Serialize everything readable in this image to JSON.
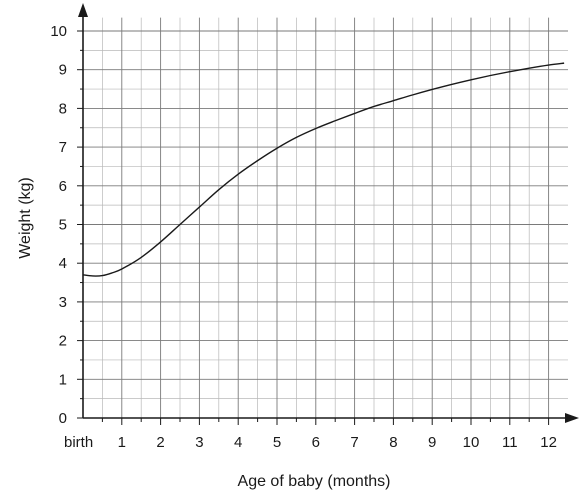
{
  "chart_data": {
    "type": "line",
    "title": "",
    "xlabel": "Age of baby (months)",
    "ylabel": "Weight (kg)",
    "xlim": [
      0,
      12.5
    ],
    "ylim": [
      0,
      10.5
    ],
    "x_ticks": [
      {
        "value": 0,
        "label": "birth"
      },
      {
        "value": 1,
        "label": "1"
      },
      {
        "value": 2,
        "label": "2"
      },
      {
        "value": 3,
        "label": "3"
      },
      {
        "value": 4,
        "label": "4"
      },
      {
        "value": 5,
        "label": "5"
      },
      {
        "value": 6,
        "label": "6"
      },
      {
        "value": 7,
        "label": "7"
      },
      {
        "value": 8,
        "label": "8"
      },
      {
        "value": 9,
        "label": "9"
      },
      {
        "value": 10,
        "label": "10"
      },
      {
        "value": 11,
        "label": "11"
      },
      {
        "value": 12,
        "label": "12"
      }
    ],
    "y_ticks": [
      0,
      1,
      2,
      3,
      4,
      5,
      6,
      7,
      8,
      9,
      10
    ],
    "minor_grid_x_step": 0.5,
    "minor_grid_y_step": 0.5,
    "grid": true,
    "legend": "none",
    "series": [
      {
        "color": "#1a1a1a",
        "points": [
          [
            0,
            3.7
          ],
          [
            0.25,
            3.67
          ],
          [
            0.5,
            3.68
          ],
          [
            0.75,
            3.75
          ],
          [
            1,
            3.85
          ],
          [
            1.5,
            4.15
          ],
          [
            2,
            4.55
          ],
          [
            2.5,
            5.0
          ],
          [
            3,
            5.45
          ],
          [
            3.5,
            5.9
          ],
          [
            4,
            6.3
          ],
          [
            4.5,
            6.65
          ],
          [
            5,
            6.97
          ],
          [
            5.5,
            7.25
          ],
          [
            6,
            7.48
          ],
          [
            6.5,
            7.68
          ],
          [
            7,
            7.87
          ],
          [
            7.5,
            8.05
          ],
          [
            8,
            8.2
          ],
          [
            8.5,
            8.35
          ],
          [
            9,
            8.49
          ],
          [
            9.5,
            8.62
          ],
          [
            10,
            8.74
          ],
          [
            10.5,
            8.85
          ],
          [
            11,
            8.95
          ],
          [
            11.5,
            9.04
          ],
          [
            12,
            9.12
          ],
          [
            12.4,
            9.17
          ]
        ]
      }
    ]
  }
}
